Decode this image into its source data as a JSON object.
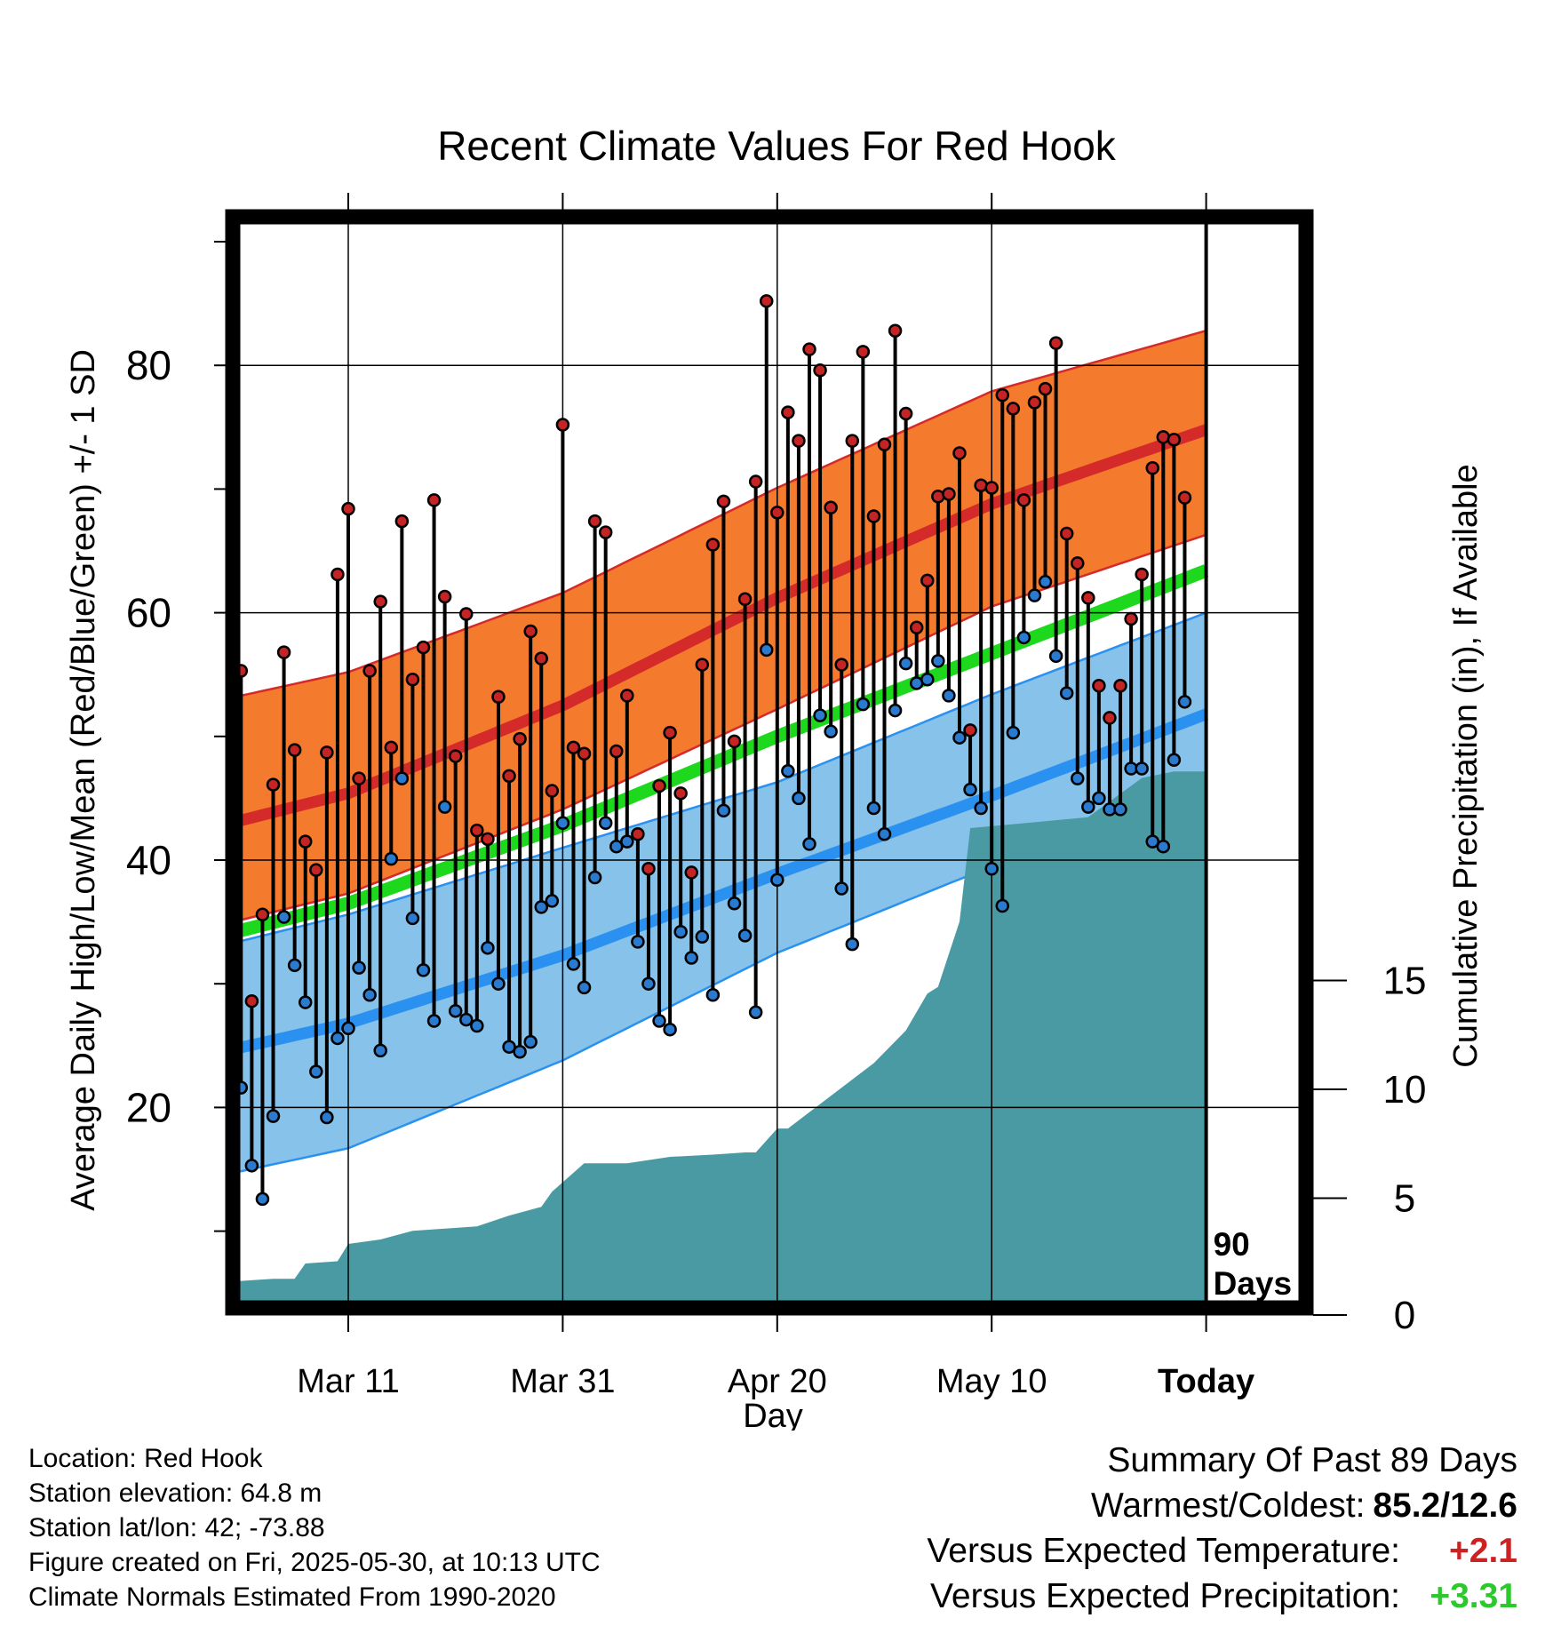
{
  "chart_data": {
    "type": "line",
    "title": "Recent Climate Values For Red Hook",
    "xlabel": "Day",
    "ylabel": "Average Daily High/Low/Mean (Red/Blue/Green) +/- 1 SD",
    "y2label": "Cumulative Precipitation (in), If Available",
    "xlim": [
      -11,
      90
    ],
    "ylim": [
      0,
      90
    ],
    "y2lim": [
      0,
      50
    ],
    "x_ticks": [
      {
        "day": 10,
        "label": "Mar 11"
      },
      {
        "day": 30,
        "label": "Mar 31"
      },
      {
        "day": 50,
        "label": "Apr 20"
      },
      {
        "day": 70,
        "label": "May 10"
      },
      {
        "day": 90,
        "label": "Today"
      }
    ],
    "y_ticks": [
      20,
      40,
      60,
      80
    ],
    "y_minor_ticks": [
      10,
      30,
      50,
      70,
      90
    ],
    "y2_ticks": [
      0,
      5,
      10,
      15
    ],
    "grid": true,
    "today_marker": {
      "day": 90,
      "label_line1": "90",
      "label_line2": "Days"
    },
    "normals": {
      "days": [
        -11,
        10,
        30,
        50,
        70,
        90
      ],
      "high_mean": [
        40.8,
        45.4,
        52.5,
        61.2,
        68.8,
        74.8
      ],
      "high_upper": [
        51.2,
        55.2,
        61.6,
        70.1,
        77.9,
        82.8
      ],
      "high_lower": [
        32.8,
        37.3,
        44.1,
        52.2,
        60.5,
        66.3
      ],
      "mean_line": [
        31.9,
        36.5,
        42.8,
        50.0,
        56.7,
        63.4
      ],
      "low_mean": [
        22.7,
        26.8,
        32.3,
        38.9,
        45.2,
        51.8
      ],
      "low_upper": [
        31.1,
        35.6,
        41.0,
        46.3,
        53.4,
        60.0
      ],
      "low_lower": [
        12.8,
        16.7,
        23.8,
        32.5,
        39.5,
        45.6
      ]
    },
    "daily": {
      "start_day": 0,
      "highs": [
        55.3,
        28.6,
        35.6,
        46.1,
        56.8,
        48.9,
        41.5,
        39.2,
        48.7,
        63.1,
        68.4,
        46.6,
        55.3,
        60.9,
        49.1,
        67.4,
        54.6,
        57.2,
        69.1,
        61.3,
        48.4,
        59.9,
        42.4,
        41.7,
        53.2,
        46.8,
        49.8,
        58.5,
        56.3,
        45.6,
        75.2,
        49.1,
        48.6,
        67.4,
        66.5,
        48.8,
        53.3,
        42.1,
        39.3,
        46.0,
        50.3,
        45.4,
        39.0,
        55.8,
        65.5,
        69.0,
        49.6,
        61.1,
        70.6,
        85.2,
        68.1,
        76.2,
        73.9,
        81.3,
        79.6,
        68.5,
        55.8,
        73.9,
        81.1,
        67.8,
        73.6,
        82.8,
        76.1,
        58.8,
        62.6,
        69.4,
        69.6,
        72.9,
        50.5,
        70.3,
        70.1,
        77.6,
        76.5,
        69.1,
        77.0,
        78.1,
        81.8,
        66.4,
        64.0,
        61.2,
        54.1,
        51.5,
        54.1,
        59.5,
        63.1,
        71.7,
        74.2,
        74.0,
        69.3
      ],
      "lows": [
        21.6,
        15.3,
        12.6,
        19.3,
        35.4,
        31.5,
        28.5,
        22.9,
        19.2,
        25.6,
        26.4,
        31.3,
        29.1,
        24.6,
        40.1,
        46.6,
        35.3,
        31.1,
        27.0,
        44.3,
        27.8,
        27.1,
        26.6,
        32.9,
        30.0,
        24.9,
        24.5,
        25.3,
        36.2,
        36.7,
        43.0,
        31.6,
        29.7,
        38.6,
        43.0,
        41.1,
        41.5,
        33.4,
        30.0,
        27.0,
        26.3,
        34.2,
        32.1,
        33.8,
        29.1,
        44.0,
        36.5,
        33.9,
        27.7,
        57.0,
        38.4,
        47.2,
        45.0,
        41.3,
        51.7,
        50.4,
        37.7,
        33.2,
        52.6,
        44.2,
        42.1,
        52.1,
        55.9,
        54.3,
        54.6,
        56.1,
        53.3,
        49.9,
        45.7,
        44.2,
        39.3,
        36.3,
        50.3,
        58.0,
        61.4,
        62.5,
        56.5,
        53.5,
        46.6,
        44.3,
        45.0,
        44.1,
        44.1,
        47.4,
        47.4,
        41.5,
        41.1,
        48.1,
        52.8
      ]
    },
    "cumulative_precip": {
      "days": [
        -11,
        -7,
        -6,
        -4,
        0,
        3,
        5,
        6,
        9,
        10,
        13,
        16,
        19,
        22,
        25,
        28,
        29,
        32,
        36,
        40,
        44,
        47,
        48,
        50,
        51,
        59,
        62,
        64,
        65,
        67,
        68,
        79,
        84,
        87,
        90
      ],
      "values": [
        0,
        0,
        1.0,
        1.2,
        1.2,
        1.3,
        1.3,
        2.0,
        2.1,
        2.9,
        3.1,
        3.5,
        3.6,
        3.7,
        4.2,
        4.6,
        5.3,
        6.6,
        6.6,
        6.9,
        7.0,
        7.1,
        7.1,
        8.2,
        8.2,
        11.2,
        12.7,
        14.4,
        14.7,
        17.7,
        22.0,
        22.5,
        24.3,
        24.6,
        24.6
      ]
    },
    "colors": {
      "high_band": "#f47a2e",
      "high_line": "#d42a2a",
      "mean_line": "#1ed81e",
      "low_band": "#86c2e9",
      "low_line": "#2b91f0",
      "precip": "#4a9aa3",
      "high_dot": "#c42424",
      "low_dot": "#2a7bcf"
    }
  },
  "footer": {
    "location": "Location: Red Hook",
    "elevation": "Station elevation: 64.8 m",
    "latlon": "Station lat/lon: 42; -73.88",
    "created": "Figure created on Fri, 2025-05-30, at 10:13 UTC",
    "normals": "Climate Normals Estimated From 1990-2020"
  },
  "summary": {
    "heading": "Summary Of Past 89 Days",
    "warm_cold_label": "Warmest/Coldest:",
    "warm_cold_value": "85.2/12.6",
    "temp_label": "Versus Expected Temperature:",
    "temp_value": "+2.1",
    "temp_color": "#cc2222",
    "precip_label": "Versus Expected Precipitation:",
    "precip_value": "+3.31",
    "precip_color": "#2bc92b"
  }
}
